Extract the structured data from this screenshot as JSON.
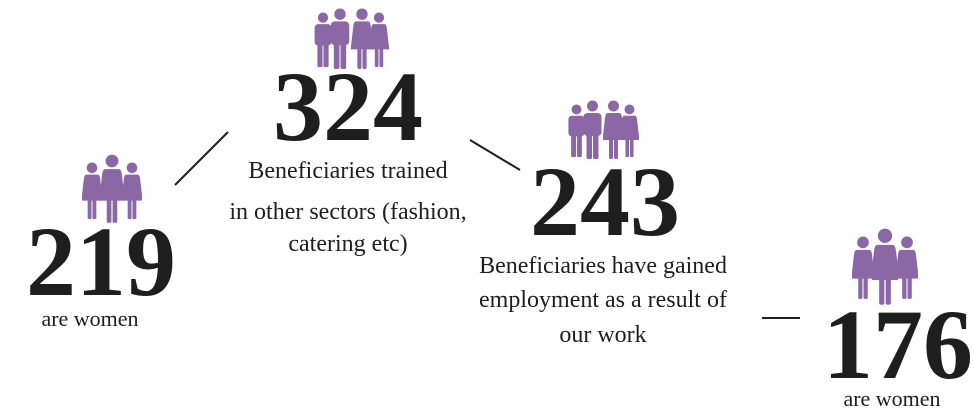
{
  "items": [
    {
      "number": 219,
      "caption": [
        "are women"
      ]
    },
    {
      "number": 324,
      "caption": [
        "Beneficiaries trained",
        "in other sectors (fashion,",
        "catering etc)"
      ]
    },
    {
      "number": 243,
      "caption": [
        "Beneficiaries have gained",
        "employment as a result of",
        "our work"
      ]
    },
    {
      "number": 176,
      "caption": [
        "are women"
      ]
    }
  ]
}
